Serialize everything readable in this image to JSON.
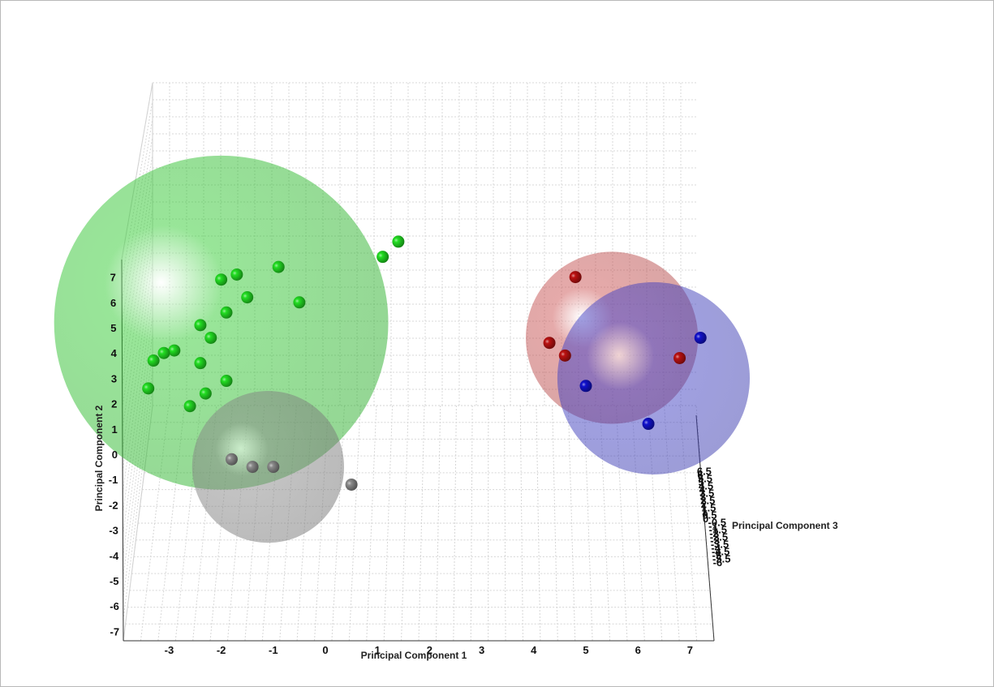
{
  "chart_data": {
    "type": "scatter",
    "title": "",
    "xlabel": "Principal Component 1",
    "ylabel": "Principal Component 2",
    "zlabel": "Principal Component 3",
    "grid": true,
    "xticks": [
      "-3",
      "-2",
      "-1",
      "0",
      "1",
      "2",
      "3",
      "4",
      "5",
      "6",
      "7"
    ],
    "yticks": [
      "-7",
      "-6",
      "-5",
      "-4",
      "-3",
      "-2",
      "-1",
      "0",
      "1",
      "2",
      "3",
      "4",
      "5",
      "6",
      "7"
    ],
    "zticks": [
      "-6",
      "-5.5",
      "-5",
      "-4.5",
      "-4",
      "-3.5",
      "-3",
      "-2.5",
      "-2",
      "-1.5",
      "-1",
      "-0.5",
      "0",
      "0.5",
      "1",
      "1.5",
      "2",
      "2.5",
      "3",
      "3.5",
      "4",
      "4.5",
      "5",
      "5.5",
      "6",
      "6.5"
    ],
    "series": [
      {
        "color": "#22dd22",
        "values": [
          {
            "x": 1.4,
            "y": 8.4
          },
          {
            "x": 1.1,
            "y": 7.8
          },
          {
            "x": -0.9,
            "y": 7.4
          },
          {
            "x": -1.7,
            "y": 7.1
          },
          {
            "x": -2.0,
            "y": 6.9
          },
          {
            "x": -1.5,
            "y": 6.2
          },
          {
            "x": -0.5,
            "y": 6.0
          },
          {
            "x": -1.9,
            "y": 5.6
          },
          {
            "x": -2.4,
            "y": 5.1
          },
          {
            "x": -2.2,
            "y": 4.6
          },
          {
            "x": -2.9,
            "y": 4.1
          },
          {
            "x": -3.1,
            "y": 4.0
          },
          {
            "x": -3.3,
            "y": 3.7
          },
          {
            "x": -2.4,
            "y": 3.6
          },
          {
            "x": -1.9,
            "y": 2.9
          },
          {
            "x": -3.4,
            "y": 2.6
          },
          {
            "x": -2.3,
            "y": 2.4
          },
          {
            "x": -2.6,
            "y": 1.9
          }
        ]
      },
      {
        "color": "#8a8a8a",
        "values": [
          {
            "x": -1.8,
            "y": -0.2
          },
          {
            "x": -1.4,
            "y": -0.5
          },
          {
            "x": -1.0,
            "y": -0.5
          },
          {
            "x": 0.5,
            "y": -1.2
          }
        ]
      },
      {
        "color": "#bb1111",
        "values": [
          {
            "x": 4.8,
            "y": 7.0
          },
          {
            "x": 4.3,
            "y": 4.4
          },
          {
            "x": 4.6,
            "y": 3.9
          },
          {
            "x": 6.8,
            "y": 3.8
          }
        ]
      },
      {
        "color": "#1111cc",
        "values": [
          {
            "x": 7.2,
            "y": 4.6
          },
          {
            "x": 5.0,
            "y": 2.7
          },
          {
            "x": 6.2,
            "y": 1.2
          }
        ]
      }
    ],
    "ellipsoids": [
      {
        "color": "#33cc33",
        "center": {
          "x": -2.0,
          "y": 5.2
        },
        "radius": 6.6
      },
      {
        "color": "#8a8a8a",
        "center": {
          "x": -1.1,
          "y": -0.5
        },
        "radius": 3.0
      },
      {
        "color": "#cc5555",
        "center": {
          "x": 5.5,
          "y": 4.6
        },
        "radius": 3.4
      },
      {
        "color": "#4444cc",
        "center": {
          "x": 6.3,
          "y": 3.0
        },
        "radius": 3.8
      }
    ]
  }
}
